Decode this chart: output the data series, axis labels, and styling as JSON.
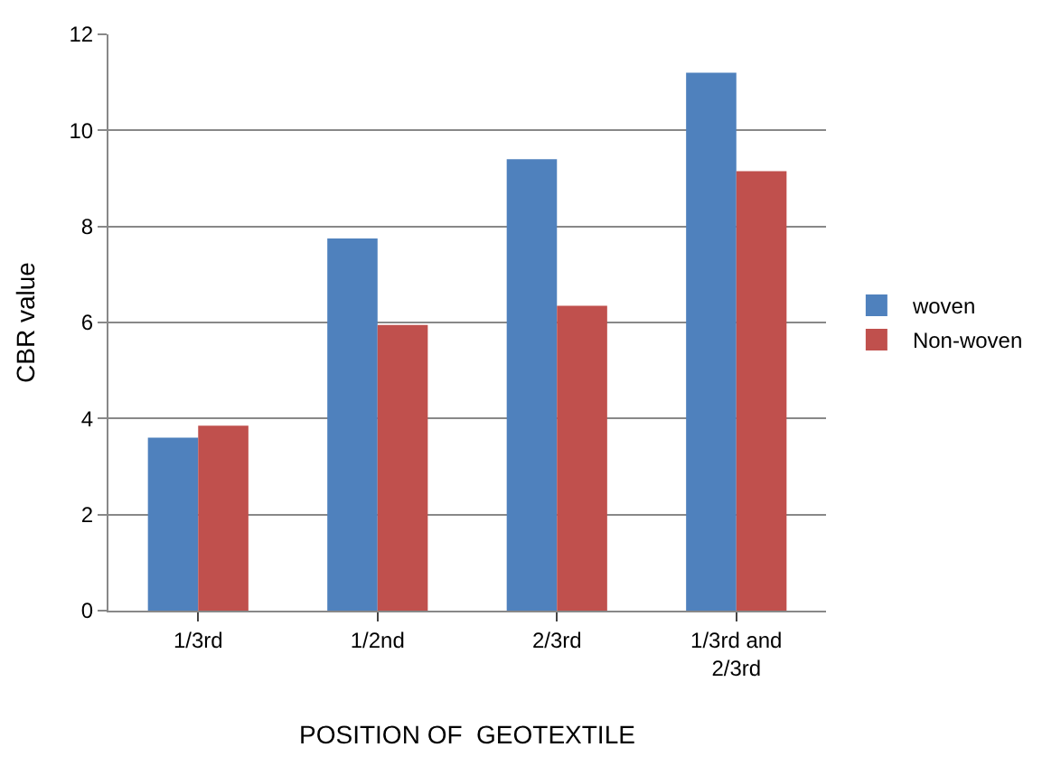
{
  "chart_data": {
    "type": "bar",
    "xlabel": "POSITION OF  GEOTEXTILE",
    "ylabel": "CBR value",
    "categories": [
      "1/3rd",
      "1/2nd",
      "2/3rd",
      "1/3rd and\n2/3rd"
    ],
    "series": [
      {
        "name": "woven",
        "color": "#4f81bd",
        "values": [
          3.6,
          7.75,
          9.4,
          11.2
        ]
      },
      {
        "name": "Non-woven",
        "color": "#c0504d",
        "values": [
          3.85,
          5.95,
          6.35,
          9.15
        ]
      }
    ],
    "ylim": [
      0,
      12
    ],
    "yticks": [
      0,
      2,
      4,
      6,
      8,
      10,
      12
    ],
    "grid": "y",
    "legend": "right"
  }
}
